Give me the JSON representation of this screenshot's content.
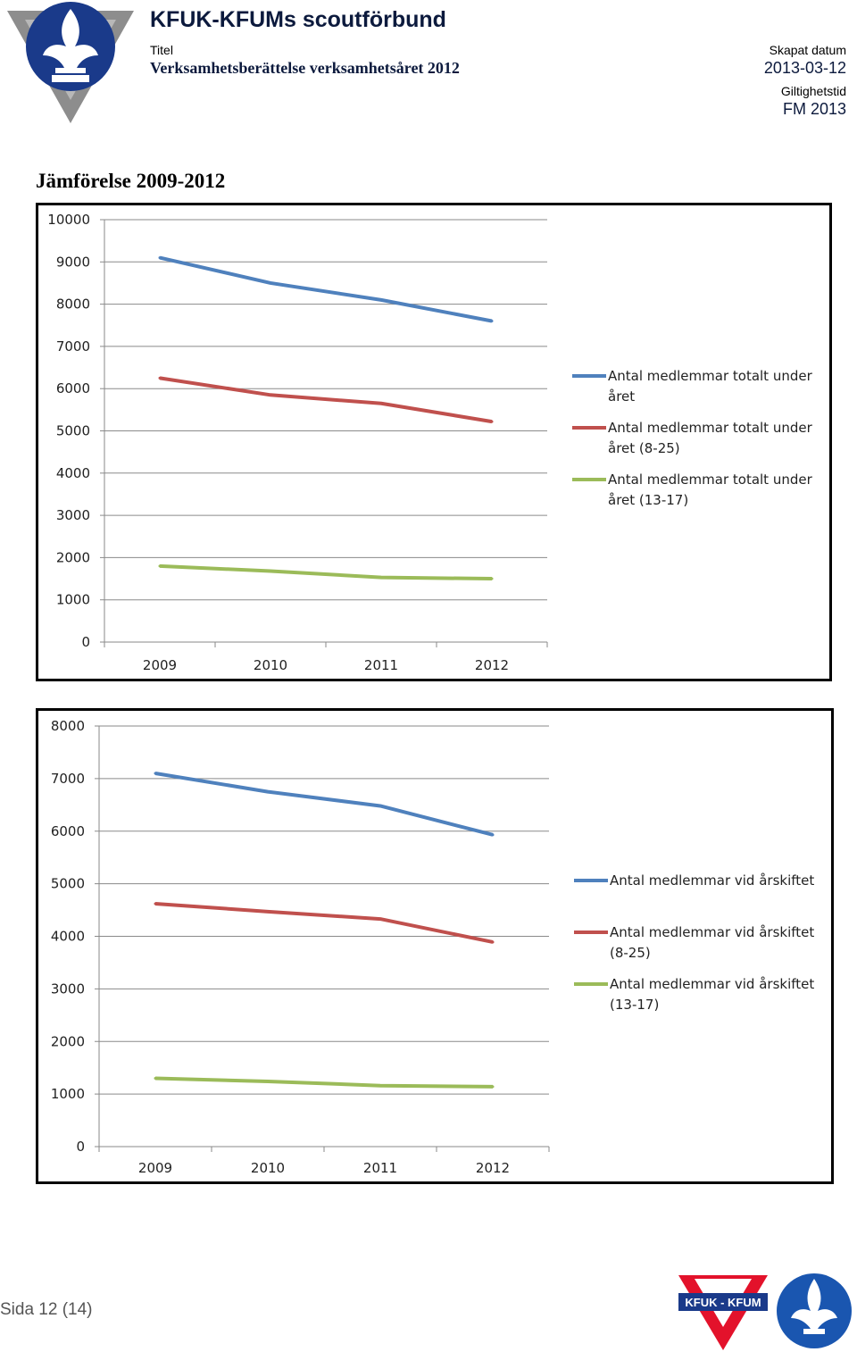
{
  "header": {
    "org_name": "KFUK-KFUMs scoutförbund",
    "title_label": "Titel",
    "title_value": "Verksamhetsberättelse verksamhetsåret 2012",
    "created_label": "Skapat datum",
    "created_value": "2013-03-12",
    "validity_label": "Giltighetstid",
    "validity_value": "FM 2013"
  },
  "section_title": "Jämförelse 2009-2012",
  "colors": {
    "blue": "#4f81bd",
    "red": "#c0504d",
    "green": "#9bbb59",
    "logo_navy": "#1a3a8a",
    "logo_red": "#e3122b"
  },
  "chart_data": [
    {
      "type": "line",
      "title": "",
      "xlabel": "",
      "ylabel": "",
      "categories": [
        "2009",
        "2010",
        "2011",
        "2012"
      ],
      "ylim": [
        0,
        10000
      ],
      "yticks": [
        "0",
        "1000",
        "2000",
        "3000",
        "4000",
        "5000",
        "6000",
        "7000",
        "8000",
        "9000",
        "10000"
      ],
      "grid": true,
      "legend_position": "right",
      "series": [
        {
          "name_line1": "Antal medlemmar totalt under",
          "name_line2": "året",
          "color": "#4f81bd",
          "values": [
            9100,
            8500,
            8100,
            7600
          ]
        },
        {
          "name_line1": "Antal medlemmar totalt under",
          "name_line2": "året (8-25)",
          "color": "#c0504d",
          "values": [
            6250,
            5850,
            5650,
            5220
          ]
        },
        {
          "name_line1": "Antal medlemmar totalt under",
          "name_line2": "året (13-17)",
          "color": "#9bbb59",
          "values": [
            1800,
            1680,
            1530,
            1500
          ]
        }
      ]
    },
    {
      "type": "line",
      "title": "",
      "xlabel": "",
      "ylabel": "",
      "categories": [
        "2009",
        "2010",
        "2011",
        "2012"
      ],
      "ylim": [
        0,
        8000
      ],
      "yticks": [
        "0",
        "1000",
        "2000",
        "3000",
        "4000",
        "5000",
        "6000",
        "7000",
        "8000"
      ],
      "grid": true,
      "legend_position": "right",
      "series": [
        {
          "name_line1": "Antal medlemmar vid årskiftet",
          "name_line2": "",
          "color": "#4f81bd",
          "values": [
            7100,
            6750,
            6480,
            5930
          ]
        },
        {
          "name_line1": "Antal medlemmar vid årskiftet",
          "name_line2": "(8-25)",
          "color": "#c0504d",
          "values": [
            4620,
            4470,
            4330,
            3890
          ]
        },
        {
          "name_line1": "Antal medlemmar vid årskiftet",
          "name_line2": "(13-17)",
          "color": "#9bbb59",
          "values": [
            1300,
            1240,
            1160,
            1140
          ]
        }
      ]
    }
  ],
  "footer": {
    "page_number": "Sida 12 (14)",
    "kfuk_logo_text": "KFUK - KFUM"
  }
}
